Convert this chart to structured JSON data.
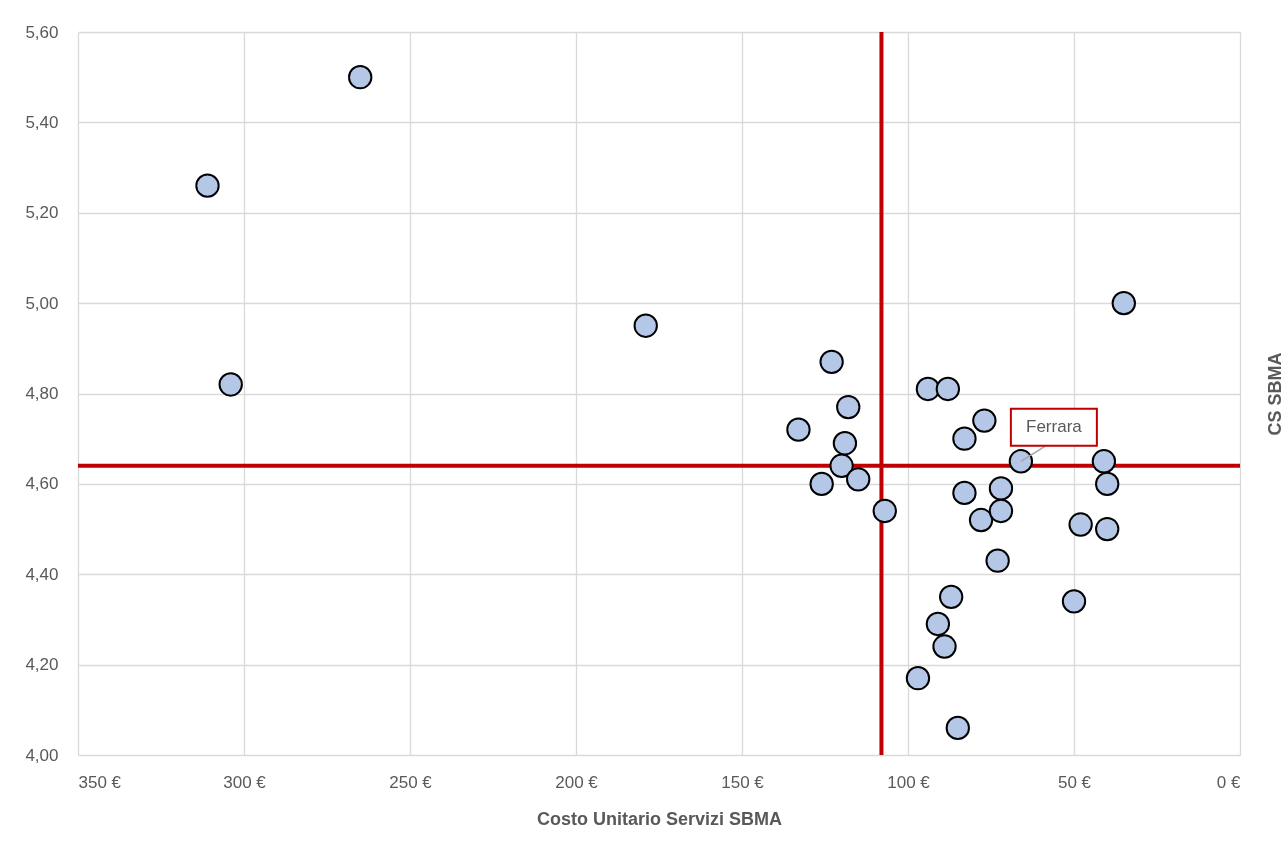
{
  "chart_data": {
    "type": "scatter",
    "xlabel": "Costo Unitario Servizi SBMA",
    "ylabel": "CS SBMA",
    "series": [
      {
        "color": "#b4c7e7",
        "x": [
          311,
          304,
          265,
          179,
          133,
          126,
          123,
          120,
          119,
          118,
          115,
          107,
          97,
          94,
          91,
          89,
          88,
          87,
          85,
          83,
          83,
          78,
          77,
          73,
          72,
          72,
          66,
          50,
          48,
          41,
          40,
          40,
          35
        ],
        "values": [
          5.26,
          4.82,
          5.5,
          4.95,
          4.72,
          4.6,
          4.87,
          4.64,
          4.69,
          4.77,
          4.61,
          4.54,
          4.17,
          4.81,
          4.29,
          4.24,
          4.81,
          4.35,
          4.06,
          4.7,
          4.58,
          4.52,
          4.74,
          4.43,
          4.59,
          4.54,
          4.65,
          4.34,
          4.51,
          4.65,
          4.6,
          4.5,
          5.0
        ]
      }
    ],
    "xlim": [
      350,
      0
    ],
    "xticks": [
      {
        "value": 350,
        "label": "350 €"
      },
      {
        "value": 300,
        "label": "300 €"
      },
      {
        "value": 250,
        "label": "250 €"
      },
      {
        "value": 200,
        "label": "200 €"
      },
      {
        "value": 150,
        "label": "150 €"
      },
      {
        "value": 100,
        "label": "100 €"
      },
      {
        "value": 50,
        "label": "50 €"
      },
      {
        "value": 0,
        "label": "0 €"
      }
    ],
    "ylim": [
      4,
      5.6
    ],
    "yticks": [
      {
        "value": 4,
        "label": "4,00"
      },
      {
        "value": 4.2,
        "label": "4,20"
      },
      {
        "value": 4.4,
        "label": "4,40"
      },
      {
        "value": 4.6,
        "label": "4,60"
      },
      {
        "value": 4.8,
        "label": "4,80"
      },
      {
        "value": 5,
        "label": "5,00"
      },
      {
        "value": 5.2,
        "label": "5,20"
      },
      {
        "value": 5.4,
        "label": "5,40"
      },
      {
        "value": 5.6,
        "label": "5,60"
      }
    ],
    "grid": true,
    "marker": "circle",
    "ref_lines": [
      {
        "axis": "x",
        "value": 108,
        "color": "#c00000"
      },
      {
        "axis": "y",
        "value": 4.64,
        "color": "#c00000"
      }
    ],
    "annotations": [
      {
        "text": "Ferrara",
        "x": 66,
        "y": 4.65
      }
    ]
  }
}
